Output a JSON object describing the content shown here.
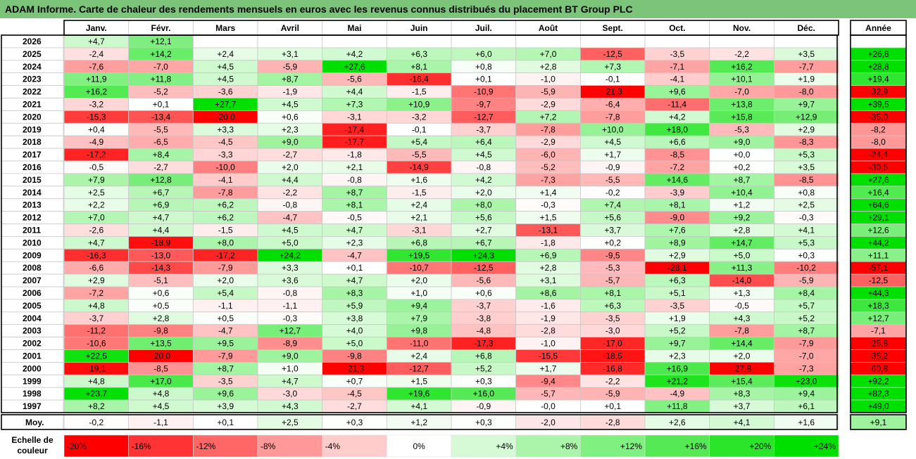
{
  "title": "ADAM Informe. Carte de chaleur des rendements mensuels en euros avec les revenus connus distribués du placement BT Group PLC",
  "chart_data": {
    "type": "heatmap",
    "months": [
      "Janv.",
      "Févr.",
      "Mars",
      "Avril",
      "Mai",
      "Juin",
      "Juil.",
      "Août",
      "Sept.",
      "Oct.",
      "Nov.",
      "Déc."
    ],
    "year_header": "Année",
    "rows": [
      {
        "label": "2026",
        "values": [
          "+4,7",
          "+12,1",
          "",
          "",
          "",
          "",
          "",
          "",
          "",
          "",
          "",
          ""
        ],
        "year": ""
      },
      {
        "label": "2025",
        "values": [
          "-2,4",
          "+14,2",
          "+2,4",
          "+3,1",
          "+4,2",
          "+6,3",
          "+6,0",
          "+7,0",
          "-12,5",
          "-3,5",
          "-2,2",
          "+3,5"
        ],
        "year": "+26,8"
      },
      {
        "label": "2024",
        "values": [
          "-7,6",
          "-7,0",
          "+4,5",
          "-5,9",
          "+27,6",
          "+8,1",
          "+0,8",
          "+2,8",
          "+7,3",
          "-7,1",
          "+16,2",
          "-7,7"
        ],
        "year": "+28,8"
      },
      {
        "label": "2023",
        "values": [
          "+11,9",
          "+11,8",
          "+4,5",
          "+8,7",
          "-5,6",
          "-16,4",
          "+0,1",
          "-1,0",
          "-0,1",
          "-4,1",
          "+10,1",
          "+1,9"
        ],
        "year": "+19,4"
      },
      {
        "label": "2022",
        "values": [
          "+16,2",
          "-5,2",
          "-3,6",
          "-1,9",
          "+4,4",
          "-1,5",
          "-10,9",
          "-5,9",
          "-21,3",
          "+9,6",
          "-7,0",
          "-8,0"
        ],
        "year": "-32,9"
      },
      {
        "label": "2021",
        "values": [
          "-3,2",
          "+0,1",
          "+27,7",
          "+4,5",
          "+7,3",
          "+10,9",
          "-9,7",
          "-2,9",
          "-6,4",
          "-11,4",
          "+13,8",
          "+9,7"
        ],
        "year": "+39,5"
      },
      {
        "label": "2020",
        "values": [
          "-15,3",
          "-13,4",
          "-20,0",
          "+0,6",
          "-3,1",
          "-3,2",
          "-12,7",
          "+7,2",
          "-7,8",
          "+4,2",
          "+15,8",
          "+12,9"
        ],
        "year": "-35,0"
      },
      {
        "label": "2019",
        "values": [
          "+0,4",
          "-5,5",
          "+3,3",
          "+2,3",
          "-17,4",
          "-0,1",
          "-3,7",
          "-7,8",
          "+10,0",
          "+18,0",
          "-5,3",
          "+2,9"
        ],
        "year": "-8,2"
      },
      {
        "label": "2018",
        "values": [
          "-4,9",
          "-6,5",
          "-4,5",
          "+9,0",
          "-17,7",
          "+5,4",
          "+6,4",
          "-2,9",
          "+4,5",
          "+6,6",
          "+9,0",
          "-8,3"
        ],
        "year": "-8,0"
      },
      {
        "label": "2017",
        "values": [
          "-17,2",
          "+8,4",
          "-3,3",
          "-2,7",
          "-1,8",
          "-5,5",
          "+4,5",
          "-6,0",
          "+1,7",
          "-8,5",
          "+0,0",
          "+5,3"
        ],
        "year": "-24,4"
      },
      {
        "label": "2016",
        "values": [
          "-0,5",
          "-2,7",
          "-10,0",
          "+2,0",
          "+2,1",
          "-14,9",
          "-0,8",
          "-5,2",
          "-0,9",
          "-7,2",
          "+0,2",
          "+3,5"
        ],
        "year": "-30,5"
      },
      {
        "label": "2015",
        "values": [
          "+7,9",
          "+12,8",
          "-4,1",
          "+4,4",
          "-0,8",
          "+1,6",
          "+4,2",
          "-7,3",
          "-5,5",
          "+14,6",
          "+8,7",
          "-8,5"
        ],
        "year": "+27,6"
      },
      {
        "label": "2014",
        "values": [
          "+2,5",
          "+6,7",
          "-7,8",
          "-2,2",
          "+8,7",
          "-1,5",
          "+2,0",
          "+1,4",
          "-0,2",
          "-3,9",
          "+10,4",
          "+0,8"
        ],
        "year": "+16,4"
      },
      {
        "label": "2013",
        "values": [
          "+2,2",
          "+6,9",
          "+6,2",
          "-0,8",
          "+8,1",
          "+2,4",
          "+8,0",
          "-0,3",
          "+7,4",
          "+8,1",
          "+1,2",
          "+2,5"
        ],
        "year": "+64,6"
      },
      {
        "label": "2012",
        "values": [
          "+7,0",
          "+4,7",
          "+6,2",
          "-4,7",
          "-0,5",
          "+2,1",
          "+5,6",
          "+1,5",
          "+5,6",
          "-9,0",
          "+9,2",
          "-0,3"
        ],
        "year": "+29,1"
      },
      {
        "label": "2011",
        "values": [
          "-2,6",
          "+4,4",
          "-1,5",
          "+4,5",
          "+4,7",
          "-3,1",
          "+2,7",
          "-13,1",
          "+3,7",
          "+7,6",
          "+2,8",
          "+4,1"
        ],
        "year": "+12,6"
      },
      {
        "label": "2010",
        "values": [
          "+4,7",
          "-18,9",
          "+8,0",
          "+5,0",
          "+2,3",
          "+6,8",
          "+6,7",
          "-1,8",
          "+0,2",
          "+8,9",
          "+14,7",
          "+5,3"
        ],
        "year": "+44,2"
      },
      {
        "label": "2009",
        "values": [
          "-16,3",
          "-13,0",
          "-17,2",
          "+24,2",
          "-4,7",
          "+19,5",
          "+24,3",
          "+6,9",
          "-9,5",
          "+2,9",
          "+5,0",
          "+0,3"
        ],
        "year": "+11,1"
      },
      {
        "label": "2008",
        "values": [
          "-6,6",
          "-14,3",
          "-7,9",
          "+3,3",
          "+0,1",
          "-10,7",
          "-12,5",
          "+2,8",
          "-5,3",
          "-28,1",
          "+11,3",
          "-10,2"
        ],
        "year": "-57,1"
      },
      {
        "label": "2007",
        "values": [
          "+2,9",
          "-5,1",
          "+2,0",
          "+3,6",
          "+4,7",
          "+2,0",
          "-5,6",
          "+3,1",
          "-5,7",
          "+6,3",
          "-14,0",
          "-5,9"
        ],
        "year": "-12,5"
      },
      {
        "label": "2006",
        "values": [
          "-7,2",
          "+0,6",
          "+5,4",
          "-0,8",
          "+8,3",
          "+1,0",
          "+0,6",
          "+8,6",
          "+8,1",
          "+5,1",
          "+1,3",
          "+8,4"
        ],
        "year": "+44,3"
      },
      {
        "label": "2005",
        "values": [
          "+4,8",
          "+0,5",
          "-1,1",
          "-1,1",
          "+5,9",
          "+9,4",
          "-3,7",
          "-1,6",
          "+6,3",
          "-3,5",
          "-0,5",
          "+5,7"
        ],
        "year": "+18,3"
      },
      {
        "label": "2004",
        "values": [
          "-3,7",
          "+2,8",
          "+0,5",
          "-0,3",
          "+3,8",
          "+7,9",
          "-3,8",
          "-1,9",
          "-3,5",
          "+1,9",
          "+4,3",
          "+5,2"
        ],
        "year": "+12,7"
      },
      {
        "label": "2003",
        "values": [
          "-11,2",
          "-9,8",
          "-4,7",
          "+12,7",
          "+4,0",
          "+9,8",
          "-4,8",
          "-2,8",
          "-3,0",
          "+5,2",
          "-7,8",
          "+8,7"
        ],
        "year": "-7,1"
      },
      {
        "label": "2002",
        "values": [
          "-10,6",
          "+13,5",
          "+9,5",
          "-8,9",
          "+5,0",
          "-11,0",
          "-17,3",
          "-1,0",
          "-17,0",
          "+9,7",
          "+14,4",
          "-7,9"
        ],
        "year": "-25,8"
      },
      {
        "label": "2001",
        "values": [
          "+22,5",
          "-20,0",
          "-7,9",
          "+9,0",
          "-9,8",
          "+2,4",
          "+6,8",
          "-15,5",
          "-18,5",
          "+2,3",
          "+2,0",
          "-7,0"
        ],
        "year": "-35,2"
      },
      {
        "label": "2000",
        "values": [
          "-19,1",
          "-8,5",
          "+8,7",
          "+1,0",
          "-21,3",
          "-12,7",
          "+5,2",
          "+1,7",
          "-16,8",
          "+16,9",
          "-27,8",
          "-7,3"
        ],
        "year": "-60,8"
      },
      {
        "label": "1999",
        "values": [
          "+4,8",
          "+17,0",
          "-3,5",
          "+4,7",
          "+0,7",
          "+1,5",
          "+0,3",
          "-9,4",
          "-2,2",
          "+21,2",
          "+15,4",
          "+23,0"
        ],
        "year": "+92,2"
      },
      {
        "label": "1998",
        "values": [
          "+23,7",
          "+4,8",
          "+9,6",
          "-3,0",
          "-4,5",
          "+19,6",
          "+16,0",
          "-5,7",
          "-5,9",
          "-4,9",
          "+8,3",
          "+9,4"
        ],
        "year": "+82,3"
      },
      {
        "label": "1997",
        "values": [
          "+8,2",
          "+4,5",
          "+3,9",
          "+4,3",
          "-2,7",
          "+4,1",
          "-0,9",
          "-0,0",
          "+0,1",
          "+11,8",
          "+3,7",
          "+6,1"
        ],
        "year": "+49,0"
      }
    ],
    "average": {
      "label": "Moy.",
      "values": [
        "-0,2",
        "-1,1",
        "+0,1",
        "+2,5",
        "+0,3",
        "+1,2",
        "+0,3",
        "-2,0",
        "-2,8",
        "+2,6",
        "+4,1",
        "+1,6"
      ],
      "year": "+9,1"
    },
    "scale_label": [
      "Echelle de",
      "couleur"
    ],
    "scale": [
      "-20%",
      "-16%",
      "-12%",
      "-8%",
      "-4%",
      "0%",
      "+4%",
      "+8%",
      "+12%",
      "+16%",
      "+20%",
      "+24%"
    ],
    "colors": {
      "neg": "#ff0000",
      "pos": "#00e000",
      "neutral": "#ffffff",
      "title_bg": "#7cc47a"
    }
  }
}
